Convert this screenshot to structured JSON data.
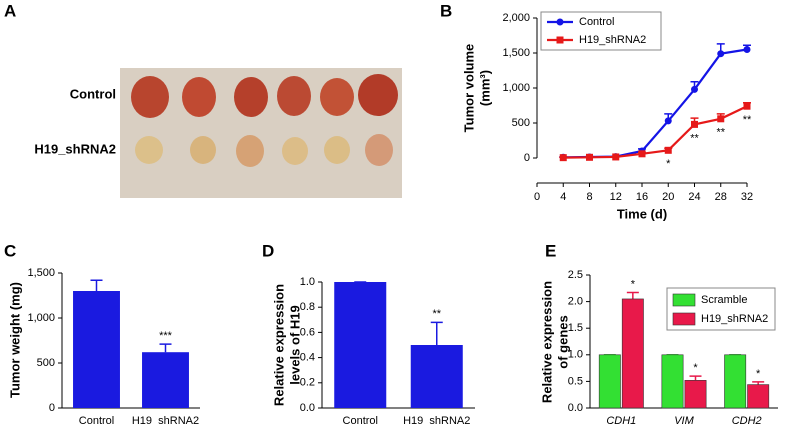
{
  "photo": {
    "panel": "A",
    "rows": [
      "Control",
      "H19_shRNA2"
    ]
  },
  "chart_data": [
    {
      "panel": "B",
      "type": "line",
      "xlabel": "Time (d)",
      "ylabel": [
        "Tumor volume",
        "(mm³)"
      ],
      "x": [
        4,
        8,
        12,
        16,
        20,
        24,
        28,
        32
      ],
      "xlim": [
        0,
        32
      ],
      "xticks": [
        0,
        4,
        8,
        12,
        16,
        20,
        24,
        28,
        32
      ],
      "ylim": [
        0,
        2000
      ],
      "yticks": [
        0,
        500,
        {
          "value": 1000,
          "label": "1,000"
        },
        {
          "value": 1500,
          "label": "1,500"
        },
        {
          "value": 2000,
          "label": "2,000"
        }
      ],
      "legend": "upper-left",
      "series": [
        {
          "name": "Control",
          "color": "#1414e6",
          "marker": "circle",
          "values": [
            10,
            15,
            20,
            100,
            530,
            980,
            1490,
            1550
          ],
          "errors": [
            5,
            5,
            5,
            30,
            100,
            110,
            140,
            60
          ]
        },
        {
          "name": "H19_shRNA2",
          "color": "#e61919",
          "marker": "square",
          "values": [
            5,
            10,
            15,
            60,
            110,
            480,
            560,
            740
          ],
          "errors": [
            5,
            5,
            5,
            20,
            30,
            90,
            70,
            50
          ]
        }
      ],
      "annotations": [
        {
          "x": 20,
          "text": "*"
        },
        {
          "x": 24,
          "text": "**"
        },
        {
          "x": 28,
          "text": "**"
        },
        {
          "x": 32,
          "text": "**"
        }
      ]
    },
    {
      "panel": "C",
      "type": "bar",
      "ylabel": [
        "Tumor weight (mg)"
      ],
      "color": "#1a1ae0",
      "categories": [
        "Control",
        "H19_shRNA2"
      ],
      "values": [
        1300,
        620
      ],
      "errors": [
        120,
        90
      ],
      "ylim": [
        0,
        1500
      ],
      "yticks": [
        0,
        500,
        {
          "value": 1000,
          "label": "1,000"
        },
        {
          "value": 1500,
          "label": "1,500"
        }
      ],
      "annotations": [
        {
          "category": "H19_shRNA2",
          "text": "***"
        }
      ]
    },
    {
      "panel": "D",
      "type": "bar",
      "ylabel": [
        "Relative expression",
        "levels of H19"
      ],
      "color": "#1a1ae0",
      "categories": [
        "Control",
        "H19_shRNA2"
      ],
      "values": [
        1.0,
        0.5
      ],
      "errors": [
        0,
        0.18
      ],
      "ylim": [
        0,
        1.0
      ],
      "yticks": [
        {
          "value": 0,
          "label": "0.0"
        },
        0.2,
        0.4,
        0.6,
        0.8,
        {
          "value": 1,
          "label": "1.0"
        }
      ],
      "annotations": [
        {
          "category": "H19_shRNA2",
          "text": "**"
        }
      ]
    },
    {
      "panel": "E",
      "type": "grouped-bar",
      "ylabel": [
        "Relative expression",
        "of genes"
      ],
      "categories": [
        "CDH1",
        "VIM",
        "CDH2"
      ],
      "legend": "upper-right",
      "series": [
        {
          "name": "Scramble",
          "color": "#33e033",
          "values": [
            1,
            1,
            1
          ],
          "errors": [
            0,
            0,
            0
          ]
        },
        {
          "name": "H19_shRNA2",
          "color": "#e8194a",
          "values": [
            2.05,
            0.52,
            0.44
          ],
          "errors": [
            0.12,
            0.08,
            0.05
          ]
        }
      ],
      "ylim": [
        0,
        2.5
      ],
      "yticks": [
        {
          "value": 0,
          "label": "0.0"
        },
        0.5,
        {
          "value": 1,
          "label": "1.0"
        },
        1.5,
        {
          "value": 2,
          "label": "2.0"
        },
        2.5
      ],
      "annotations": [
        {
          "category": "CDH1",
          "series": "H19_shRNA2",
          "text": "*"
        },
        {
          "category": "VIM",
          "series": "H19_shRNA2",
          "text": "*"
        },
        {
          "category": "CDH2",
          "series": "H19_shRNA2",
          "text": "*"
        }
      ]
    }
  ]
}
